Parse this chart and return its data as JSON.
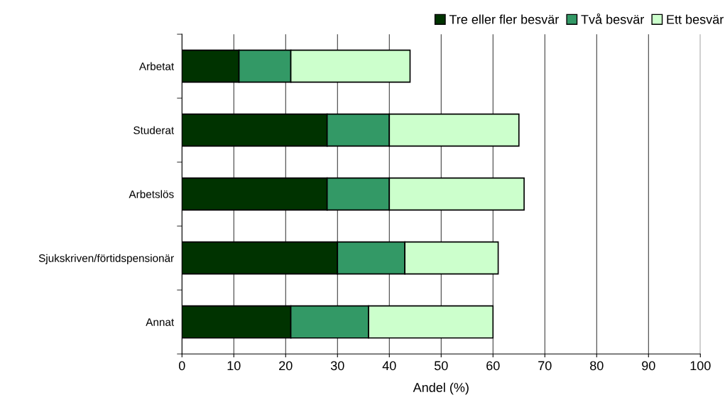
{
  "chart_data": {
    "type": "bar",
    "orientation": "horizontal",
    "stacked": true,
    "categories": [
      "Arbetat",
      "Studerat",
      "Arbetslös",
      "Sjukskriven/förtidspensionär",
      "Annat"
    ],
    "series": [
      {
        "name": "Tre eller fler besvär",
        "color": "#003300",
        "values": [
          11,
          28,
          28,
          30,
          21
        ]
      },
      {
        "name": "Två besvär",
        "color": "#339966",
        "values": [
          10,
          12,
          12,
          13,
          15
        ]
      },
      {
        "name": "Ett besvär",
        "color": "#ccffcc",
        "values": [
          23,
          25,
          26,
          18,
          24
        ]
      }
    ],
    "xlabel": "Andel (%)",
    "xlim": [
      0,
      100
    ],
    "xticks": [
      0,
      10,
      20,
      30,
      40,
      50,
      60,
      70,
      80,
      90,
      100
    ],
    "grid": "x",
    "legend": "top right"
  }
}
